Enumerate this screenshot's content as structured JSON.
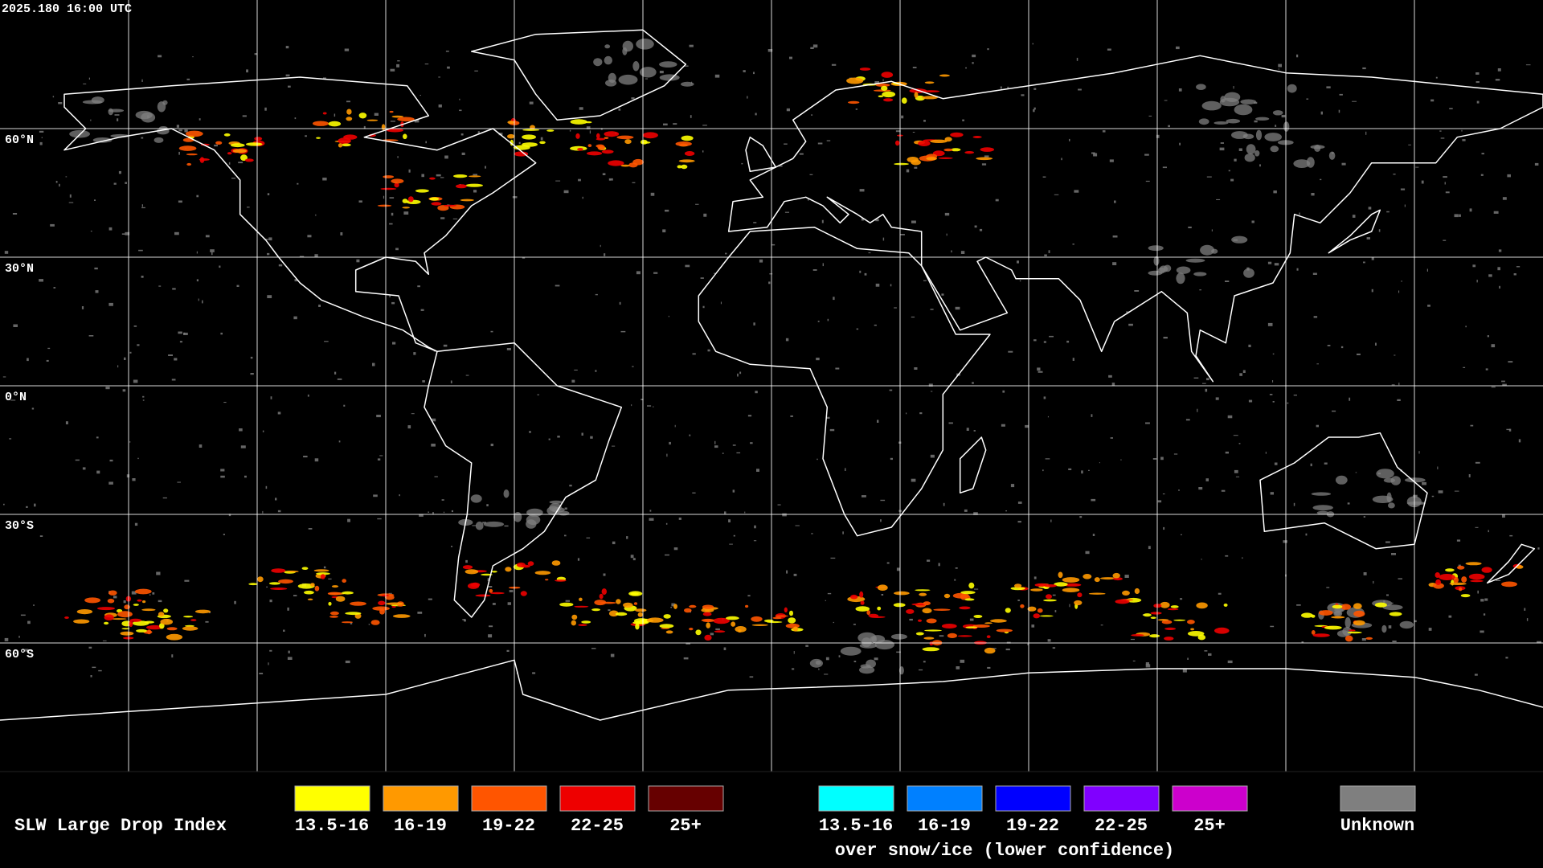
{
  "header": {
    "timestamp": "2025.180 16:00 UTC"
  },
  "map": {
    "latitude_labels": [
      "60°N",
      "30°N",
      "0°N",
      "30°S",
      "60°S"
    ]
  },
  "legend": {
    "title": "SLW Large Drop Index",
    "items": [
      {
        "label": "13.5-16",
        "color": "#ffff00"
      },
      {
        "label": "16-19",
        "color": "#ff9900"
      },
      {
        "label": "19-22",
        "color": "#ff5500"
      },
      {
        "label": "22-25",
        "color": "#ee0000"
      },
      {
        "label": "25+",
        "color": "#660000"
      }
    ],
    "snow_ice_items": [
      {
        "label": "13.5-16",
        "color": "#00ffff"
      },
      {
        "label": "16-19",
        "color": "#0080ff"
      },
      {
        "label": "19-22",
        "color": "#0000ff"
      },
      {
        "label": "22-25",
        "color": "#8000ff"
      },
      {
        "label": "25+",
        "color": "#cc00cc"
      }
    ],
    "snow_ice_caption": "over snow/ice (lower confidence)",
    "unknown": {
      "label": "Unknown",
      "color": "#7f7f7f"
    }
  }
}
